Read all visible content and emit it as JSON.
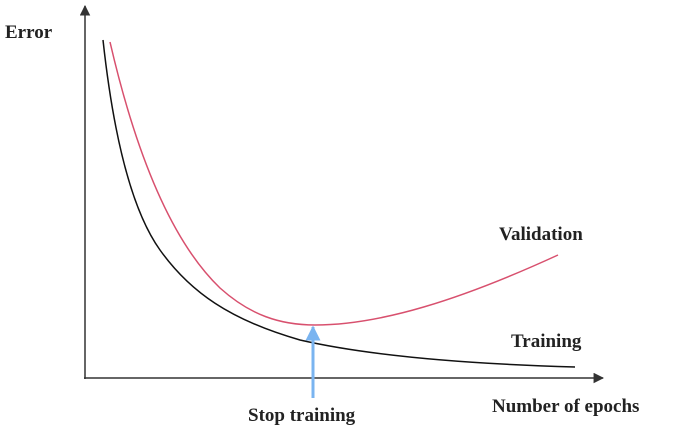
{
  "axes": {
    "y_label": "Error",
    "x_label": "Number of epochs"
  },
  "curves": [
    {
      "label": "Validation"
    },
    {
      "label": "Training"
    }
  ],
  "annotation": "Stop training"
}
